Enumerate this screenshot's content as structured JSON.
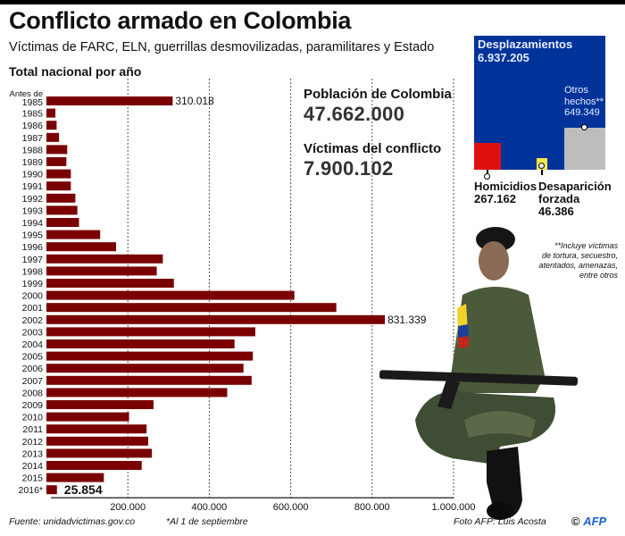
{
  "header": {
    "title": "Conflicto armado en Colombia",
    "subtitle": "Víctimas de FARC, ELN, guerrillas desmovilizadas, paramilitares y Estado",
    "section_title": "Total nacional por año"
  },
  "stats": {
    "population_label": "Población de Colombia",
    "population_value": "47.662.000",
    "victims_label": "Víctimas del conflicto",
    "victims_value": "7.900.102"
  },
  "breakdown": {
    "colors": {
      "background": "#00339a",
      "homicidios": "#e01010",
      "desaparicion": "#f5e84a",
      "otros": "#bdbdbd"
    },
    "desplazamientos_label": "Desplazamientos",
    "desplazamientos_value": "6.937.205",
    "otros_label_1": "Otros",
    "otros_label_2": "hechos**",
    "otros_value": "649.349",
    "homicidios_label": "Homicidios",
    "homicidios_value": "267.162",
    "desaparicion_label_1": "Desaparición",
    "desaparicion_label_2": "forzada",
    "desaparicion_value": "46.386"
  },
  "note": {
    "line1": "**Incluye víctimas",
    "line2": "de tortura, secuestro,",
    "line3": "atentados, amenazas,",
    "line4": "entre otros"
  },
  "footer": {
    "source": "Fuente: unidadvictimas.gov.co",
    "asterisk_note": "*Al 1 de septiembre",
    "photo_credit": "Foto AFP: Luis Acosta",
    "copyright_symbol": "©",
    "copyright_brand": "AFP"
  },
  "chart_data": {
    "type": "bar",
    "orientation": "horizontal",
    "title": "Total nacional por año",
    "xlabel": "",
    "ylabel": "",
    "xlim": [
      0,
      1000000
    ],
    "grid": true,
    "bar_color": "#7a0000",
    "x_ticks": [
      200000,
      400000,
      600000,
      800000,
      1000000
    ],
    "x_tick_labels": [
      "200.000",
      "400.000",
      "600.000",
      "800.000",
      "1.000.000"
    ],
    "categories": [
      "Antes de|1985",
      "1985",
      "1986",
      "1987",
      "1988",
      "1989",
      "1990",
      "1991",
      "1992",
      "1993",
      "1994",
      "1995",
      "1996",
      "1997",
      "1998",
      "1999",
      "2000",
      "2001",
      "2002",
      "2003",
      "2004",
      "2005",
      "2006",
      "2007",
      "2008",
      "2009",
      "2010",
      "2011",
      "2012",
      "2013",
      "2014",
      "2015",
      "2016*"
    ],
    "values": [
      310018,
      22000,
      25000,
      31000,
      51000,
      49000,
      60000,
      60000,
      71000,
      76000,
      80000,
      132000,
      171000,
      286000,
      271000,
      313000,
      609000,
      712000,
      831339,
      513000,
      462000,
      507000,
      484000,
      504000,
      444000,
      263000,
      203000,
      246000,
      250000,
      259000,
      234000,
      141000,
      25854
    ],
    "data_labels": [
      {
        "category": "Antes de|1985",
        "text": "310.018"
      },
      {
        "category": "2002",
        "text": "831.339"
      },
      {
        "category": "2016*",
        "text": "25.854"
      }
    ]
  }
}
